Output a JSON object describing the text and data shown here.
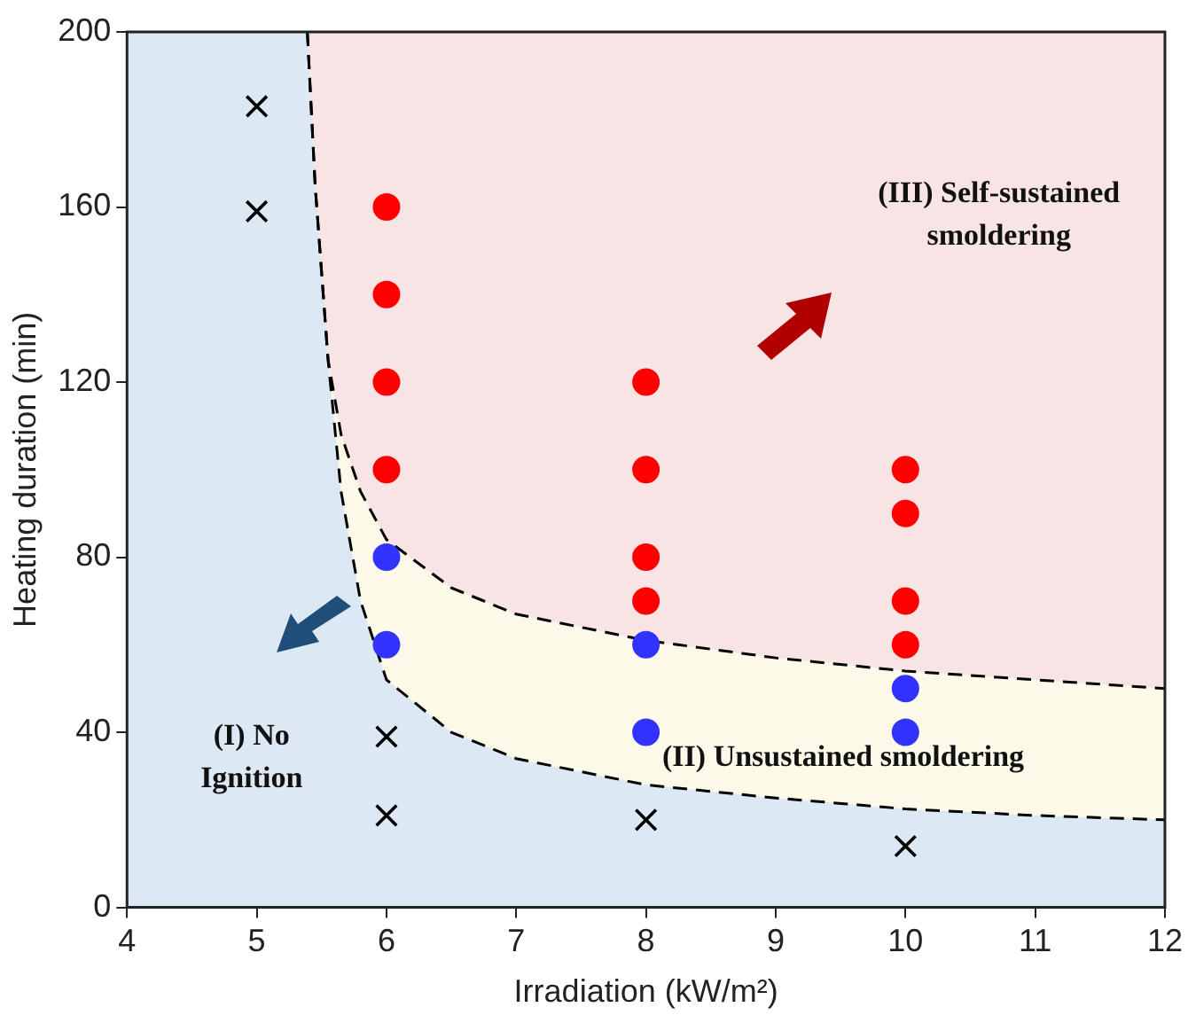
{
  "chart_data": {
    "type": "scatter",
    "xlabel": "Irradiation (kW/m²)",
    "ylabel": "Heating duration (min)",
    "xlim": [
      4,
      12
    ],
    "xticks": [
      4,
      5,
      6,
      7,
      8,
      9,
      10,
      11,
      12
    ],
    "ylim": [
      0,
      200
    ],
    "yticks": [
      0,
      40,
      80,
      120,
      160,
      200
    ],
    "legend": false,
    "series": [
      {
        "type": "line",
        "color": "#000000",
        "line_style": "dashed",
        "x": [
          5.39,
          5.45,
          5.55,
          5.65,
          5.8,
          6,
          6.5,
          7,
          8,
          9,
          10,
          11,
          12
        ],
        "values": [
          200,
          165,
          125,
          108,
          95,
          84,
          73,
          67,
          61,
          57,
          54,
          52,
          50
        ]
      },
      {
        "type": "line",
        "color": "#000000",
        "line_style": "dashed",
        "x": [
          5.39,
          5.45,
          5.55,
          5.65,
          5.8,
          6,
          6.5,
          7,
          8,
          9,
          10,
          11,
          12
        ],
        "values": [
          200,
          165,
          125,
          95,
          70,
          52,
          40,
          34,
          28,
          25,
          22.5,
          21,
          20
        ]
      },
      {
        "type": "scatter",
        "marker": "cross",
        "color": "#000000",
        "x": [
          5,
          5,
          6,
          6,
          8,
          10
        ],
        "values": [
          183,
          159,
          39,
          21,
          20,
          14
        ]
      },
      {
        "type": "scatter",
        "marker": "circle",
        "color": "#3333ff",
        "x": [
          6,
          6,
          8,
          8,
          10,
          10
        ],
        "values": [
          80,
          60,
          60,
          40,
          50,
          40
        ]
      },
      {
        "type": "scatter",
        "marker": "circle",
        "color": "#ff0000",
        "x": [
          6,
          6,
          6,
          6,
          8,
          8,
          8,
          8,
          10,
          10,
          10,
          10
        ],
        "values": [
          160,
          140,
          120,
          100,
          120,
          100,
          80,
          70,
          100,
          90,
          70,
          60
        ]
      }
    ],
    "annotations": [
      "(III) Self-sustained\nsmoldering",
      "(II) Unsustained smoldering",
      "(I) No\nIgnition"
    ]
  }
}
